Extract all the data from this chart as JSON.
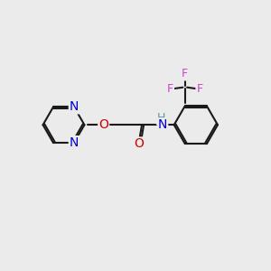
{
  "bg_color": "#ebebeb",
  "bond_color": "#1a1a1a",
  "N_color": "#0000cc",
  "O_color": "#cc0000",
  "F_color": "#cc44cc",
  "H_color": "#5c9999",
  "lw": 1.5,
  "fs": 10,
  "fs_s": 9,
  "dbo": 0.065,
  "xlim": [
    0,
    10
  ],
  "ylim": [
    0,
    9
  ]
}
